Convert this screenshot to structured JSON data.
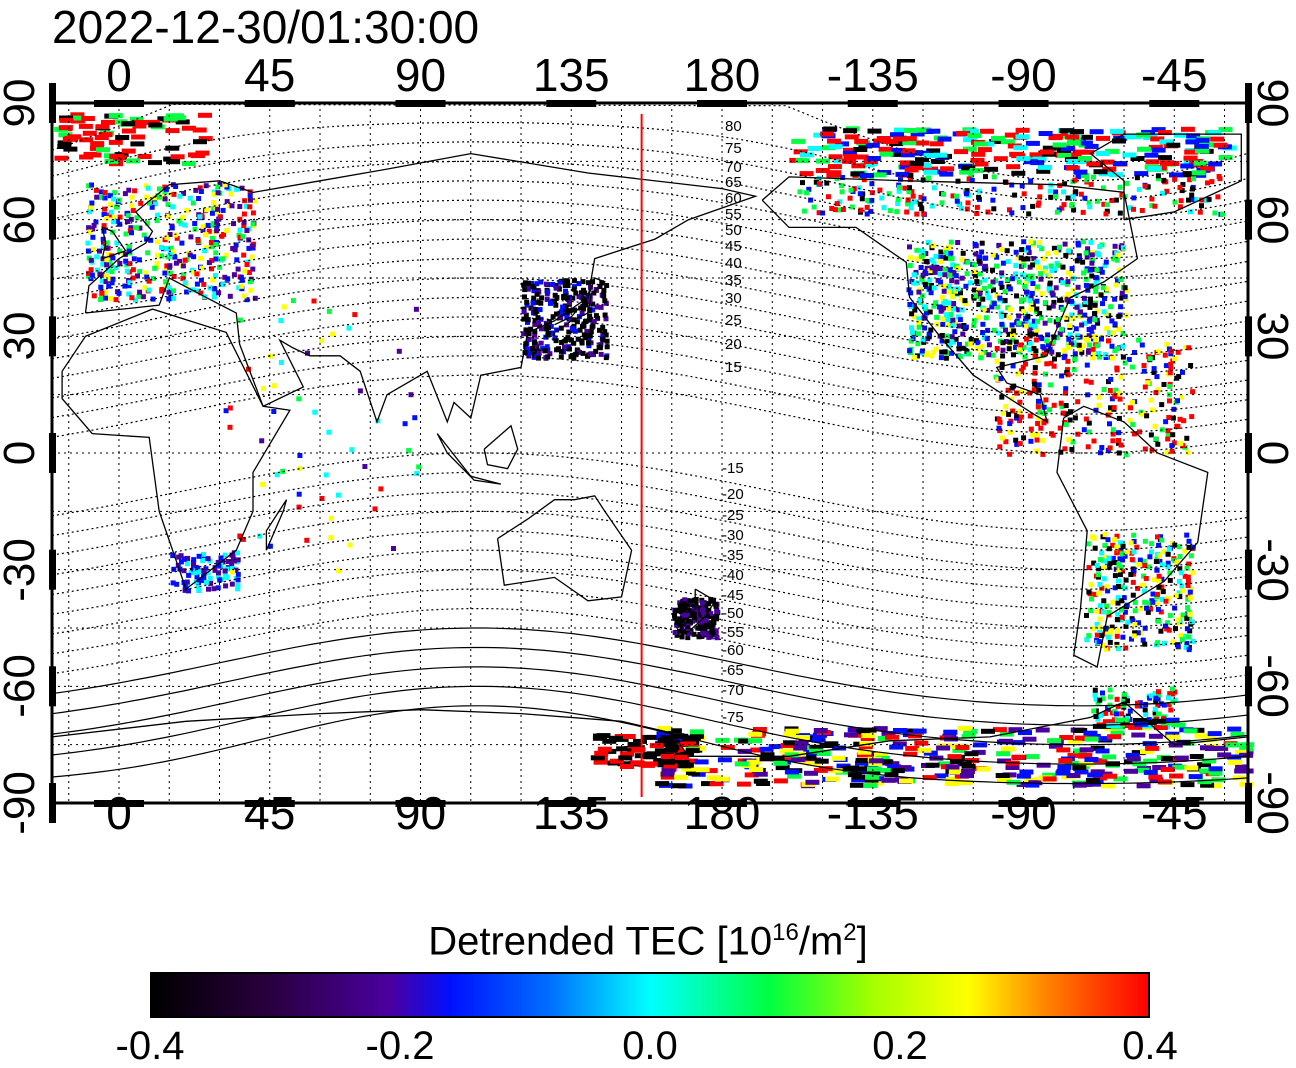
{
  "title": "2022-12-30/01:30:00",
  "map": {
    "lon_ticks_top": [
      "0",
      "45",
      "90",
      "135",
      "180",
      "-135",
      "-90",
      "-45"
    ],
    "lon_ticks_bottom": [
      "0",
      "45",
      "90",
      "135",
      "180",
      "-135",
      "-90",
      "-45"
    ],
    "lat_ticks_left": [
      "90",
      "60",
      "30",
      "0",
      "-30",
      "-60",
      "-90"
    ],
    "lat_ticks_right": [
      "90",
      "60",
      "30",
      "0",
      "-30",
      "-60",
      "-90"
    ],
    "longitude_range": [
      -20,
      337
    ],
    "latitude_range": [
      -90,
      90
    ],
    "grid": "dotted, every 15 degrees",
    "time_marker_longitude": 156,
    "time_marker_color": "#ff0000",
    "contour_labels_north": [
      "80",
      "75",
      "70",
      "65",
      "60",
      "55",
      "50",
      "45",
      "40",
      "35",
      "30",
      "25",
      "20",
      "15"
    ],
    "contour_labels_south": [
      "-15",
      "-20",
      "-25",
      "-30",
      "-35",
      "-40",
      "-45",
      "-50",
      "-55",
      "-60",
      "-65",
      "-70",
      "-75"
    ]
  },
  "colorbar": {
    "label": "Detrended TEC  [10",
    "unit_exp": "16",
    "unit_mid": "/m",
    "unit_exp2": "2",
    "unit_end": "]",
    "ticks": [
      "-0.4",
      "-0.2",
      "0.0",
      "0.2",
      "0.4"
    ],
    "range": [
      -0.4,
      0.4
    ],
    "colors": [
      "#000000",
      "#4b00a0",
      "#0010ff",
      "#00ffff",
      "#00ff40",
      "#ffff00",
      "#ff0000"
    ]
  }
}
